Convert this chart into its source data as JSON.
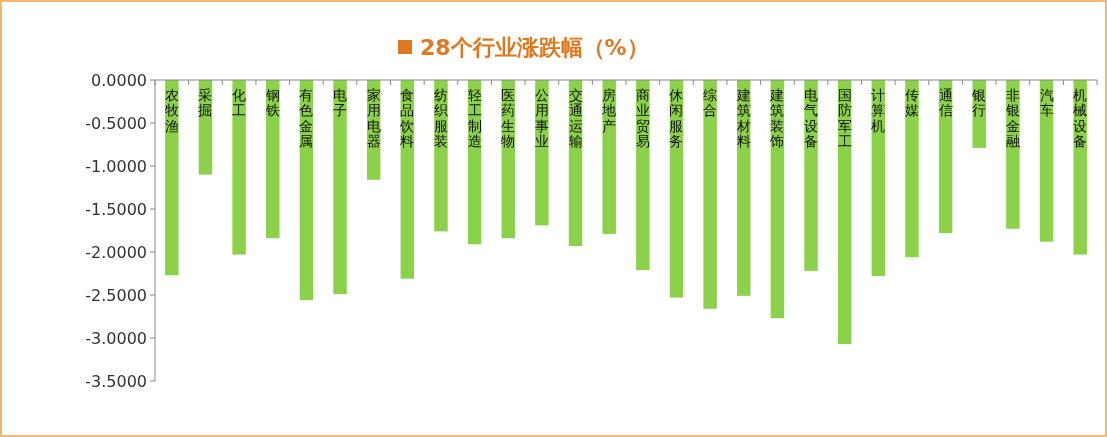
{
  "chart_data": {
    "type": "bar",
    "title": "28个行业涨跌幅（%）",
    "categories": [
      "农牧渔",
      "采掘",
      "化工",
      "钢铁",
      "有色金属",
      "电子",
      "家用电器",
      "食品饮料",
      "纺织服装",
      "轻工制造",
      "医药生物",
      "公用事业",
      "交通运输",
      "房地产",
      "商业贸易",
      "休闲服务",
      "综合",
      "建筑材料",
      "建筑装饰",
      "电气设备",
      "国防军工",
      "计算机",
      "传媒",
      "通信",
      "银行",
      "非银金融",
      "汽车",
      "机械设备"
    ],
    "values": [
      -2.27,
      -1.1,
      -2.03,
      -1.84,
      -2.56,
      -2.49,
      -1.16,
      -2.31,
      -1.76,
      -1.91,
      -1.84,
      -1.69,
      -1.93,
      -1.79,
      -2.21,
      -2.53,
      -2.66,
      -2.51,
      -2.77,
      -2.22,
      -3.07,
      -2.28,
      -2.06,
      -1.78,
      -0.79,
      -1.73,
      -1.88,
      -2.03
    ],
    "color": "#8cd14a",
    "ylim": [
      -3.5,
      0
    ],
    "yticks": [
      {
        "value": 0,
        "label": "0.0000"
      },
      {
        "value": -0.5,
        "label": "-0.5000"
      },
      {
        "value": -1,
        "label": "-1.0000"
      },
      {
        "value": -1.5,
        "label": "-1.5000"
      },
      {
        "value": -2,
        "label": "-2.0000"
      },
      {
        "value": -2.5,
        "label": "-2.5000"
      },
      {
        "value": -3,
        "label": "-3.0000"
      },
      {
        "value": -3.5,
        "label": "-3.5000"
      }
    ],
    "grid": false
  }
}
